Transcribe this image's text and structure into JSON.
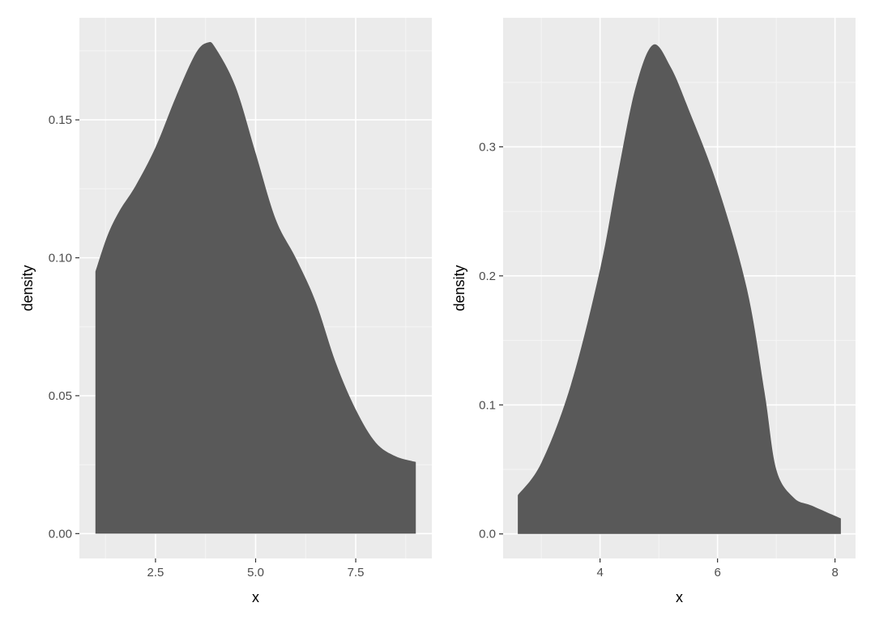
{
  "colors": {
    "panel_background": "#ebebeb",
    "grid_major": "#ffffff",
    "grid_minor": "#f5f5f5",
    "fill": "#595959",
    "tick": "#333333"
  },
  "chart_data": [
    {
      "type": "area",
      "subtype": "density",
      "xlabel": "x",
      "ylabel": "density",
      "xlim": [
        0.6,
        9.4
      ],
      "ylim": [
        -0.009,
        0.187
      ],
      "x_ticks": [
        2.5,
        5.0,
        7.5
      ],
      "x_tick_labels": [
        "2.5",
        "5.0",
        "7.5"
      ],
      "y_ticks": [
        0.0,
        0.05,
        0.1,
        0.15
      ],
      "y_tick_labels": [
        "0.00",
        "0.05",
        "0.10",
        "0.15"
      ],
      "grid": true,
      "x": [
        1.0,
        1.3,
        1.6,
        2.0,
        2.5,
        3.0,
        3.5,
        3.8,
        4.0,
        4.5,
        5.0,
        5.5,
        6.0,
        6.5,
        7.0,
        7.5,
        8.0,
        8.5,
        9.0
      ],
      "y": [
        0.095,
        0.108,
        0.117,
        0.126,
        0.14,
        0.158,
        0.174,
        0.178,
        0.176,
        0.162,
        0.138,
        0.114,
        0.1,
        0.084,
        0.062,
        0.045,
        0.033,
        0.028,
        0.026
      ]
    },
    {
      "type": "area",
      "subtype": "density",
      "xlabel": "x",
      "ylabel": "density",
      "xlim": [
        2.35,
        8.35
      ],
      "ylim": [
        -0.019,
        0.4
      ],
      "x_ticks": [
        4,
        6,
        8
      ],
      "x_tick_labels": [
        "4",
        "6",
        "8"
      ],
      "y_ticks": [
        0.0,
        0.1,
        0.2,
        0.3
      ],
      "y_tick_labels": [
        "0.0",
        "0.1",
        "0.2",
        "0.3"
      ],
      "grid": true,
      "x": [
        2.6,
        3.0,
        3.5,
        4.0,
        4.3,
        4.6,
        4.9,
        5.2,
        5.5,
        6.0,
        6.5,
        6.8,
        7.0,
        7.3,
        7.6,
        8.1
      ],
      "y": [
        0.03,
        0.055,
        0.115,
        0.205,
        0.278,
        0.345,
        0.379,
        0.362,
        0.33,
        0.27,
        0.19,
        0.11,
        0.05,
        0.028,
        0.022,
        0.012
      ]
    }
  ]
}
